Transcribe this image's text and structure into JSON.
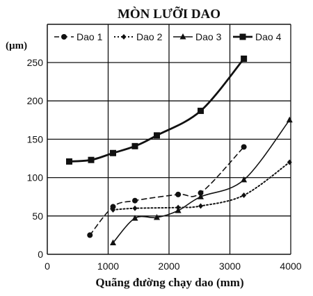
{
  "chart_data": {
    "type": "line",
    "title": "MÒN LƯỠI DAO",
    "xlabel": "Quãng đường chạy dao (mm)",
    "ylabel": "(µm)",
    "xlim": [
      0,
      4000
    ],
    "ylim": [
      0,
      250
    ],
    "xticks": [
      0,
      1000,
      2000,
      3000,
      4000
    ],
    "yticks": [
      0,
      50,
      100,
      150,
      200,
      250
    ],
    "grid": true,
    "legend_position": "top",
    "series": [
      {
        "name": "Dao 1",
        "line_style": "dashed",
        "marker": "circle",
        "x": [
          700,
          1080,
          1440,
          2150,
          2520,
          3230
        ],
        "y": [
          25,
          62,
          70,
          78,
          80,
          140
        ]
      },
      {
        "name": "Dao 2",
        "line_style": "dotted",
        "marker": "diamond",
        "x": [
          1080,
          1440,
          2150,
          2520,
          3230,
          3980
        ],
        "y": [
          58,
          60,
          61,
          63,
          77,
          120
        ]
      },
      {
        "name": "Dao 3",
        "line_style": "solid-thin",
        "marker": "triangle",
        "x": [
          1080,
          1440,
          1800,
          2150,
          2520,
          3230,
          3980
        ],
        "y": [
          15,
          47,
          48,
          57,
          75,
          97,
          175
        ]
      },
      {
        "name": "Dao 4",
        "line_style": "solid-thick",
        "marker": "square",
        "x": [
          360,
          720,
          1080,
          1440,
          1800,
          2520,
          3230
        ],
        "y": [
          121,
          123,
          132,
          141,
          155,
          187,
          255
        ]
      }
    ]
  }
}
